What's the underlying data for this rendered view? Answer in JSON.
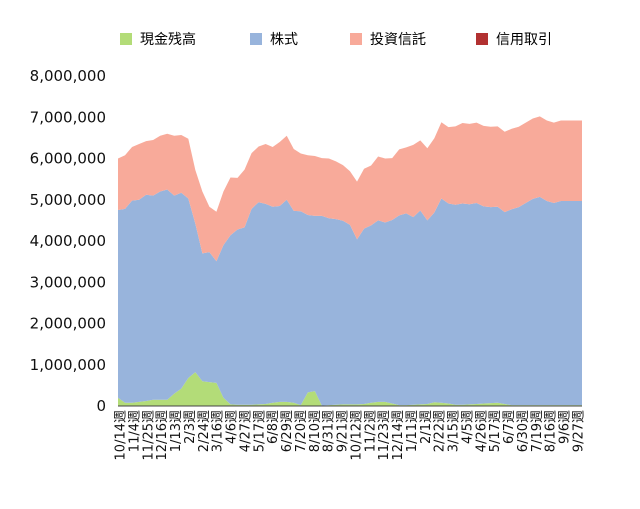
{
  "chart_data": {
    "type": "area",
    "stacked": true,
    "legend_position": "top",
    "grid": false,
    "ylim": [
      0,
      8000000
    ],
    "yticks": [
      "0",
      "1,000,000",
      "2,000,000",
      "3,000,000",
      "4,000,000",
      "5,000,000",
      "6,000,000",
      "7,000,000",
      "8,000,000"
    ],
    "x_tick_labels": [
      "10/14週",
      "11/4週",
      "11/25週",
      "12/16週",
      "1/13週",
      "2/3週",
      "2/24週",
      "3/16週",
      "4/6週",
      "4/27週",
      "5/17週",
      "6/8週",
      "6/29週",
      "7/20週",
      "8/10週",
      "8/31週",
      "9/21週",
      "10/12週",
      "11/2週",
      "11/23週",
      "12/14週",
      "1/11週",
      "2/1週",
      "2/22週",
      "3/15週",
      "4/5週",
      "4/26週",
      "5/17週",
      "6/7週",
      "6/30週",
      "7/19週",
      "8/16週",
      "9/6週",
      "9/27週"
    ],
    "series": [
      {
        "name": "現金残高",
        "color": "#b3dc78",
        "values": [
          200000,
          80000,
          80000,
          100000,
          120000,
          150000,
          150000,
          150000,
          300000,
          420000,
          680000,
          820000,
          600000,
          580000,
          560000,
          200000,
          40000,
          30000,
          30000,
          30000,
          40000,
          50000,
          80000,
          100000,
          100000,
          80000,
          20000,
          330000,
          360000,
          10000,
          20000,
          30000,
          40000,
          40000,
          40000,
          50000,
          80000,
          100000,
          100000,
          60000,
          20000,
          20000,
          30000,
          40000,
          50000,
          90000,
          80000,
          60000,
          30000,
          30000,
          40000,
          50000,
          60000,
          70000,
          80000,
          50000,
          20000,
          20000,
          20000,
          20000,
          20000,
          20000,
          20000,
          20000,
          20000,
          20000,
          20000
        ]
      },
      {
        "name": "株式",
        "color": "#98b4dc",
        "values": [
          4550000,
          4700000,
          4900000,
          4900000,
          5000000,
          4950000,
          5050000,
          5100000,
          4800000,
          4750000,
          4350000,
          3600000,
          3100000,
          3150000,
          2950000,
          3700000,
          4100000,
          4250000,
          4300000,
          4750000,
          4900000,
          4850000,
          4750000,
          4750000,
          4900000,
          4650000,
          4700000,
          4300000,
          4250000,
          4600000,
          4530000,
          4500000,
          4450000,
          4350000,
          4000000,
          4250000,
          4300000,
          4400000,
          4350000,
          4450000,
          4600000,
          4650000,
          4550000,
          4700000,
          4450000,
          4600000,
          4950000,
          4850000,
          4850000,
          4880000,
          4850000,
          4870000,
          4780000,
          4750000,
          4750000,
          4650000,
          4750000,
          4800000,
          4900000,
          5000000,
          5050000,
          4950000,
          4900000,
          4950000,
          4950000,
          4950000,
          4950000
        ]
      },
      {
        "name": "投資信託",
        "color": "#f8aa9a",
        "values": [
          1250000,
          1300000,
          1300000,
          1350000,
          1300000,
          1350000,
          1350000,
          1350000,
          1450000,
          1400000,
          1450000,
          1300000,
          1500000,
          1100000,
          1200000,
          1300000,
          1400000,
          1250000,
          1400000,
          1350000,
          1350000,
          1450000,
          1450000,
          1550000,
          1550000,
          1500000,
          1400000,
          1450000,
          1450000,
          1400000,
          1450000,
          1400000,
          1350000,
          1300000,
          1400000,
          1450000,
          1450000,
          1550000,
          1550000,
          1500000,
          1600000,
          1600000,
          1750000,
          1700000,
          1750000,
          1800000,
          1850000,
          1850000,
          1900000,
          1950000,
          1950000,
          1950000,
          1950000,
          1950000,
          1950000,
          1950000,
          1950000,
          1950000,
          1950000,
          1950000,
          1950000,
          1950000,
          1950000,
          1950000,
          1950000,
          1950000,
          1950000
        ]
      },
      {
        "name": "信用取引",
        "color": "#b23131",
        "values": [
          0,
          0,
          0,
          0,
          0,
          0,
          0,
          0,
          0,
          0,
          0,
          0,
          0,
          0,
          0,
          0,
          0,
          0,
          0,
          0,
          0,
          0,
          0,
          0,
          0,
          0,
          0,
          0,
          0,
          0,
          0,
          0,
          0,
          0,
          0,
          0,
          0,
          0,
          0,
          0,
          0,
          0,
          0,
          0,
          0,
          0,
          0,
          0,
          0,
          0,
          0,
          0,
          0,
          0,
          0,
          0,
          0,
          0,
          0,
          0,
          0,
          0,
          0,
          0,
          0,
          0,
          0
        ]
      }
    ]
  }
}
